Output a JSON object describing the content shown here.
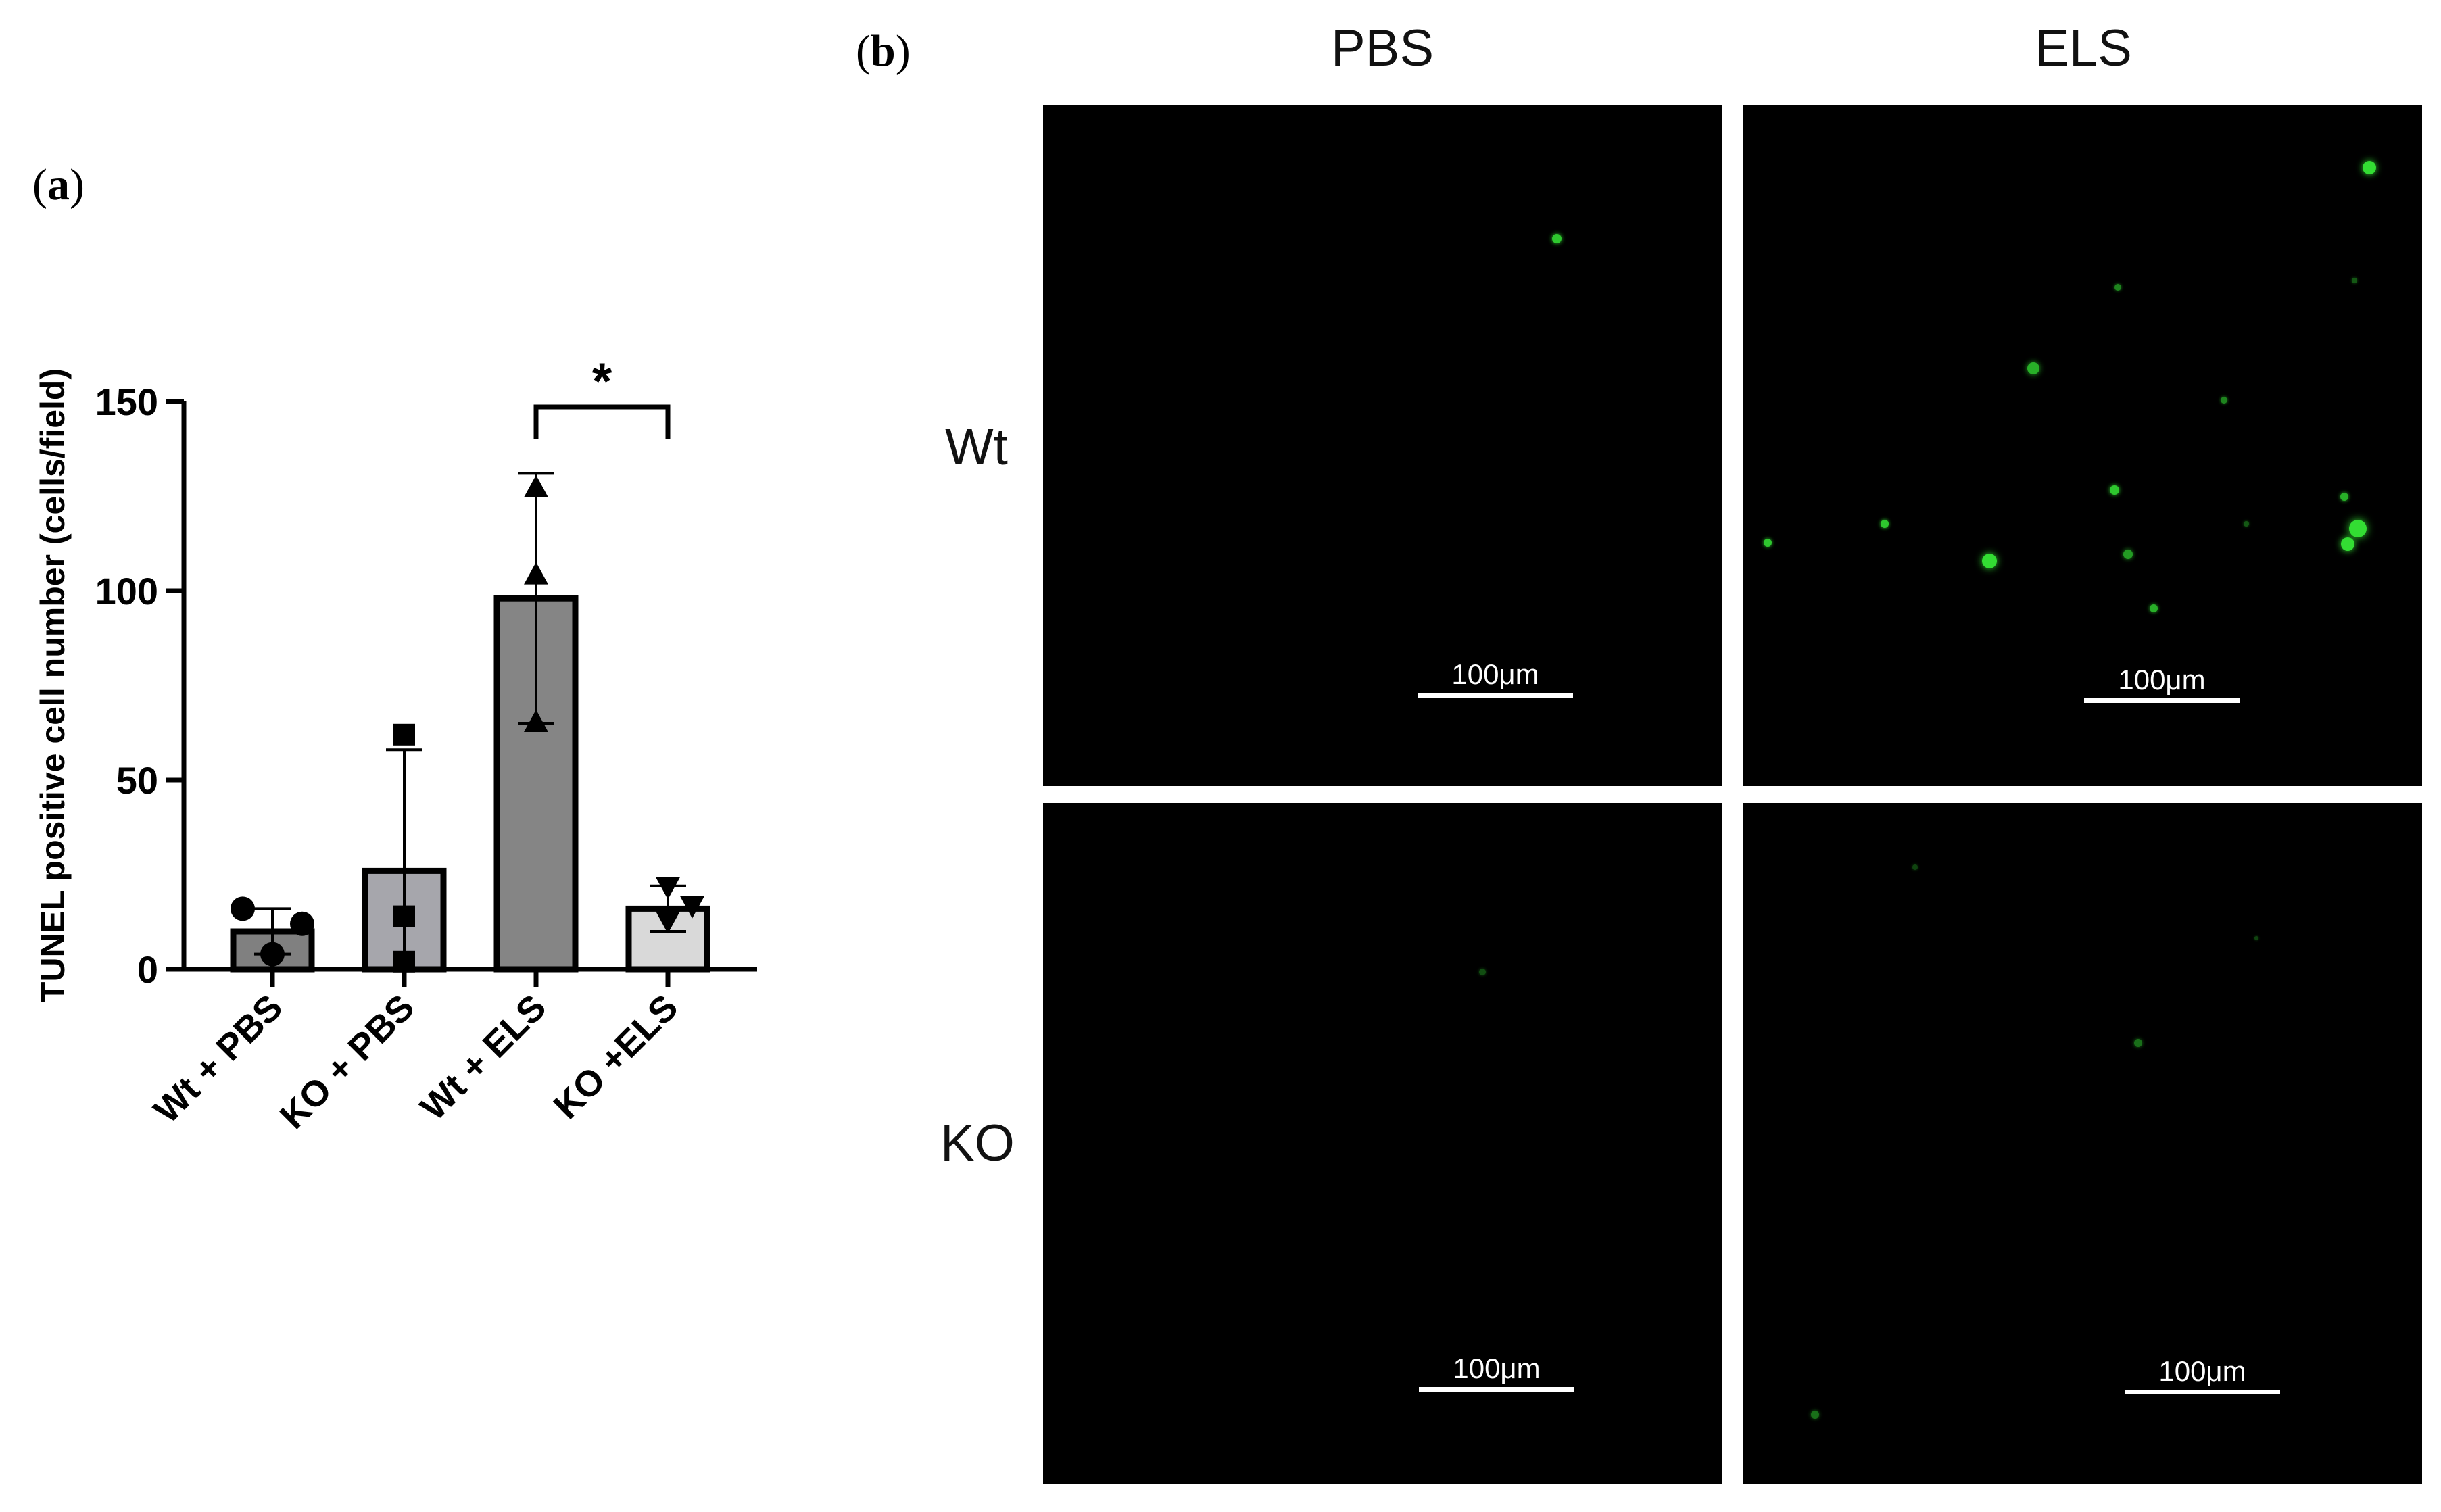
{
  "panel_a": {
    "label": "a"
  },
  "panel_b": {
    "label": "b"
  },
  "chart_data": {
    "type": "bar",
    "ylabel": "TUNEL positive cell number (cells/field)",
    "ylim": [
      0,
      150
    ],
    "yticks": [
      "0",
      "50",
      "100",
      "150"
    ],
    "categories": [
      "Wt + PBS",
      "KO + PBS",
      "Wt + ELS",
      "KO +ELS"
    ],
    "values": [
      10,
      26,
      98,
      16
    ],
    "error_sd": [
      6,
      32,
      33,
      6
    ],
    "points": [
      [
        16,
        4,
        12
      ],
      [
        62,
        14,
        2
      ],
      [
        127,
        104,
        65
      ],
      [
        22,
        13,
        17
      ]
    ],
    "markers": [
      "circle",
      "square",
      "triangle-up",
      "triangle-down"
    ],
    "bar_colors": [
      "#808080",
      "#a6a6ac",
      "#858585",
      "#d9d9d9"
    ],
    "significance": {
      "label": "*",
      "between": [
        2,
        3
      ]
    }
  },
  "micrographs": {
    "columns": [
      "PBS",
      "ELS"
    ],
    "rows": [
      "Wt",
      "KO"
    ],
    "scale_bar": "100μm",
    "signal_color": "#33dd33"
  }
}
